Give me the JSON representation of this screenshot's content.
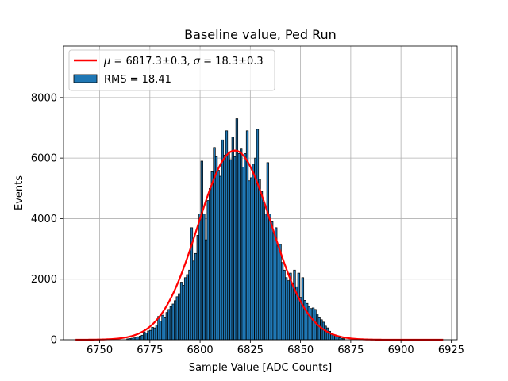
{
  "chart_data": {
    "type": "bar",
    "title": "Baseline value, Ped Run",
    "xlabel": "Sample Value [ADC Counts]",
    "ylabel": "Events",
    "xlim": [
      6732,
      6928
    ],
    "ylim": [
      0,
      9700
    ],
    "xticks": [
      6750,
      6775,
      6800,
      6825,
      6850,
      6875,
      6900,
      6925
    ],
    "yticks": [
      0,
      2000,
      4000,
      6000,
      8000
    ],
    "grid": true,
    "legend_position": "top-left",
    "histogram": {
      "name": "RMS = 18.41",
      "color": "#1f77b4",
      "edge_color": "#000000",
      "bins": [
        [
          6764.0,
          30
        ],
        [
          6765.0,
          40
        ],
        [
          6766.1,
          50
        ],
        [
          6767.1,
          60
        ],
        [
          6768.1,
          80
        ],
        [
          6769.1,
          100
        ],
        [
          6770.2,
          120
        ],
        [
          6771.2,
          150
        ],
        [
          6772.2,
          260
        ],
        [
          6773.2,
          220
        ],
        [
          6774.3,
          290
        ],
        [
          6775.3,
          310
        ],
        [
          6776.3,
          410
        ],
        [
          6777.3,
          390
        ],
        [
          6778.4,
          480
        ],
        [
          6779.4,
          770
        ],
        [
          6780.4,
          620
        ],
        [
          6781.4,
          810
        ],
        [
          6782.5,
          750
        ],
        [
          6783.5,
          900
        ],
        [
          6784.5,
          1000
        ],
        [
          6785.5,
          1100
        ],
        [
          6786.6,
          1180
        ],
        [
          6787.6,
          1290
        ],
        [
          6788.6,
          1420
        ],
        [
          6789.6,
          1520
        ],
        [
          6790.7,
          1900
        ],
        [
          6791.7,
          1800
        ],
        [
          6792.7,
          2050
        ],
        [
          6793.7,
          2150
        ],
        [
          6794.8,
          2300
        ],
        [
          6795.8,
          3700
        ],
        [
          6796.8,
          2600
        ],
        [
          6797.8,
          2850
        ],
        [
          6798.9,
          3450
        ],
        [
          6799.9,
          4150
        ],
        [
          6800.9,
          5900
        ],
        [
          6801.9,
          4150
        ],
        [
          6803.0,
          3300
        ],
        [
          6804.0,
          4600
        ],
        [
          6805.0,
          5000
        ],
        [
          6806.0,
          5550
        ],
        [
          6807.1,
          6350
        ],
        [
          6808.1,
          6050
        ],
        [
          6809.1,
          5600
        ],
        [
          6810.1,
          5400
        ],
        [
          6811.2,
          6600
        ],
        [
          6812.2,
          6100
        ],
        [
          6813.2,
          6900
        ],
        [
          6814.2,
          6150
        ],
        [
          6815.3,
          5950
        ],
        [
          6816.3,
          6700
        ],
        [
          6817.3,
          6050
        ],
        [
          6818.3,
          7300
        ],
        [
          6819.4,
          6150
        ],
        [
          6820.4,
          6300
        ],
        [
          6821.4,
          5700
        ],
        [
          6822.4,
          6150
        ],
        [
          6823.5,
          6900
        ],
        [
          6824.5,
          5250
        ],
        [
          6825.5,
          5350
        ],
        [
          6826.5,
          5800
        ],
        [
          6827.6,
          6000
        ],
        [
          6828.6,
          6950
        ],
        [
          6829.6,
          5300
        ],
        [
          6830.6,
          4900
        ],
        [
          6831.7,
          4550
        ],
        [
          6832.7,
          4150
        ],
        [
          6833.7,
          5850
        ],
        [
          6834.7,
          4150
        ],
        [
          6835.8,
          3900
        ],
        [
          6836.8,
          3550
        ],
        [
          6837.8,
          3700
        ],
        [
          6838.8,
          3100
        ],
        [
          6839.9,
          3150
        ],
        [
          6840.9,
          2550
        ],
        [
          6841.9,
          2300
        ],
        [
          6842.9,
          2050
        ],
        [
          6844.0,
          1950
        ],
        [
          6845.0,
          2200
        ],
        [
          6846.0,
          1850
        ],
        [
          6847.0,
          2300
        ],
        [
          6848.1,
          1750
        ],
        [
          6849.1,
          2200
        ],
        [
          6850.1,
          1400
        ],
        [
          6851.1,
          2050
        ],
        [
          6852.2,
          1300
        ],
        [
          6853.2,
          1200
        ],
        [
          6854.2,
          1100
        ],
        [
          6855.2,
          1030
        ],
        [
          6856.3,
          1050
        ],
        [
          6857.3,
          1000
        ],
        [
          6858.3,
          850
        ],
        [
          6859.3,
          750
        ],
        [
          6860.4,
          660
        ],
        [
          6861.4,
          580
        ],
        [
          6862.4,
          450
        ],
        [
          6863.4,
          390
        ],
        [
          6864.5,
          280
        ],
        [
          6865.5,
          220
        ],
        [
          6866.5,
          160
        ],
        [
          6867.5,
          140
        ],
        [
          6868.6,
          100
        ],
        [
          6869.6,
          70
        ],
        [
          6870.6,
          40
        ],
        [
          6871.6,
          35
        ]
      ]
    },
    "fit": {
      "name": "$\\mu = 6817.3 \\pm 0.3$, $\\sigma = 18.3 \\pm 0.3$",
      "legend_segments": [
        {
          "text": "μ",
          "italic": true
        },
        {
          "text": " = 6817.3±0.3, ",
          "italic": false
        },
        {
          "text": "σ",
          "italic": true
        },
        {
          "text": " = 18.3±0.3",
          "italic": false
        }
      ],
      "type": "gaussian",
      "mu": 6817.3,
      "sigma": 18.3,
      "amplitude": 6250,
      "x_range": [
        6738,
        6921
      ],
      "color": "#ff0000"
    }
  }
}
